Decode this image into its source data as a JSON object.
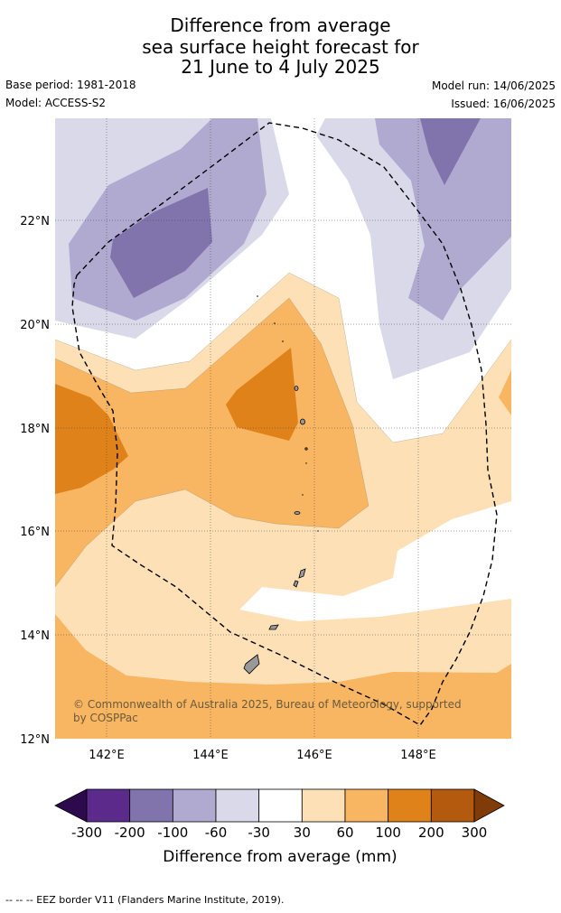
{
  "header": {
    "title_lines": [
      "Difference from average",
      "sea surface height forecast for",
      "21 June to 4 July 2025"
    ],
    "base_period": "Base period: 1981-2018",
    "model": "Model: ACCESS-S2",
    "model_run": "Model run: 14/06/2025",
    "issued": "Issued: 16/06/2025"
  },
  "map": {
    "lat_labels": [
      "22°N",
      "20°N",
      "18°N",
      "16°N",
      "14°N",
      "12°N"
    ],
    "lon_labels": [
      "142°E",
      "144°E",
      "146°E",
      "148°E"
    ],
    "lat_range": [
      12,
      24
    ],
    "lon_range": [
      141,
      149.8
    ],
    "copyright": "© Commonwealth of Australia 2025, Bureau of Meteorology, supported by COSPPac",
    "land_color": "#999999",
    "eez_style": "dashed black line"
  },
  "colorbar": {
    "title": "Difference from average (mm)",
    "tick_labels": [
      "-300",
      "-200",
      "-100",
      "-60",
      "-30",
      "30",
      "60",
      "100",
      "200",
      "300"
    ],
    "colors": {
      "below_min": "#2d0a4e",
      "bins": [
        "#5b2a8a",
        "#8173ab",
        "#b1aad0",
        "#d9d9ea",
        "#ffffff",
        "#fde0b5",
        "#f8b562",
        "#e0821a",
        "#b35a0e"
      ],
      "above_max": "#7f3b08"
    }
  },
  "footnote": "-- -- -- EEZ border V11 (Flanders Marine Institute, 2019)."
}
